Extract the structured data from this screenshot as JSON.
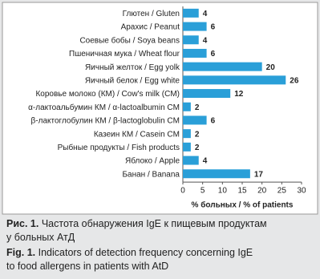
{
  "chart_data": {
    "type": "bar",
    "orientation": "horizontal",
    "categories": [
      "Глютен / Gluten",
      "Арахис / Peanut",
      "Соевые бобы / Soya beans",
      "Пшеничная мука / Wheat flour",
      "Яичный желток / Egg yolk",
      "Яичный белок / Egg white",
      "Коровье молоко (КМ) / Cow's milk (CM)",
      "α-лактоальбумин КМ / α-lactoalbumin CM",
      "β-лактоглобулин КМ / β-lactoglobulin CM",
      "Казеин КМ / Casein CM",
      "Рыбные продукты / Fish products",
      "Яблоко / Apple",
      "Банан / Banana"
    ],
    "values": [
      4,
      6,
      4,
      6,
      20,
      26,
      12,
      2,
      6,
      2,
      2,
      4,
      17
    ],
    "color": "#2a9fd8",
    "xlabel": "% больных / % of patients",
    "xlim": [
      0,
      30
    ],
    "xticks": [
      0,
      5,
      10,
      15,
      20,
      25,
      30
    ],
    "grid": false
  },
  "caption": {
    "ru_label": "Рис. 1.",
    "ru_line1": "Частота обнаружения IgE к пищевым продуктам",
    "ru_line2": "у больных АтД",
    "en_label": "Fig. 1.",
    "en_line1": "Indicators of detection frequency concerning IgE",
    "en_line2": "to food allergens in patients with AtD"
  }
}
